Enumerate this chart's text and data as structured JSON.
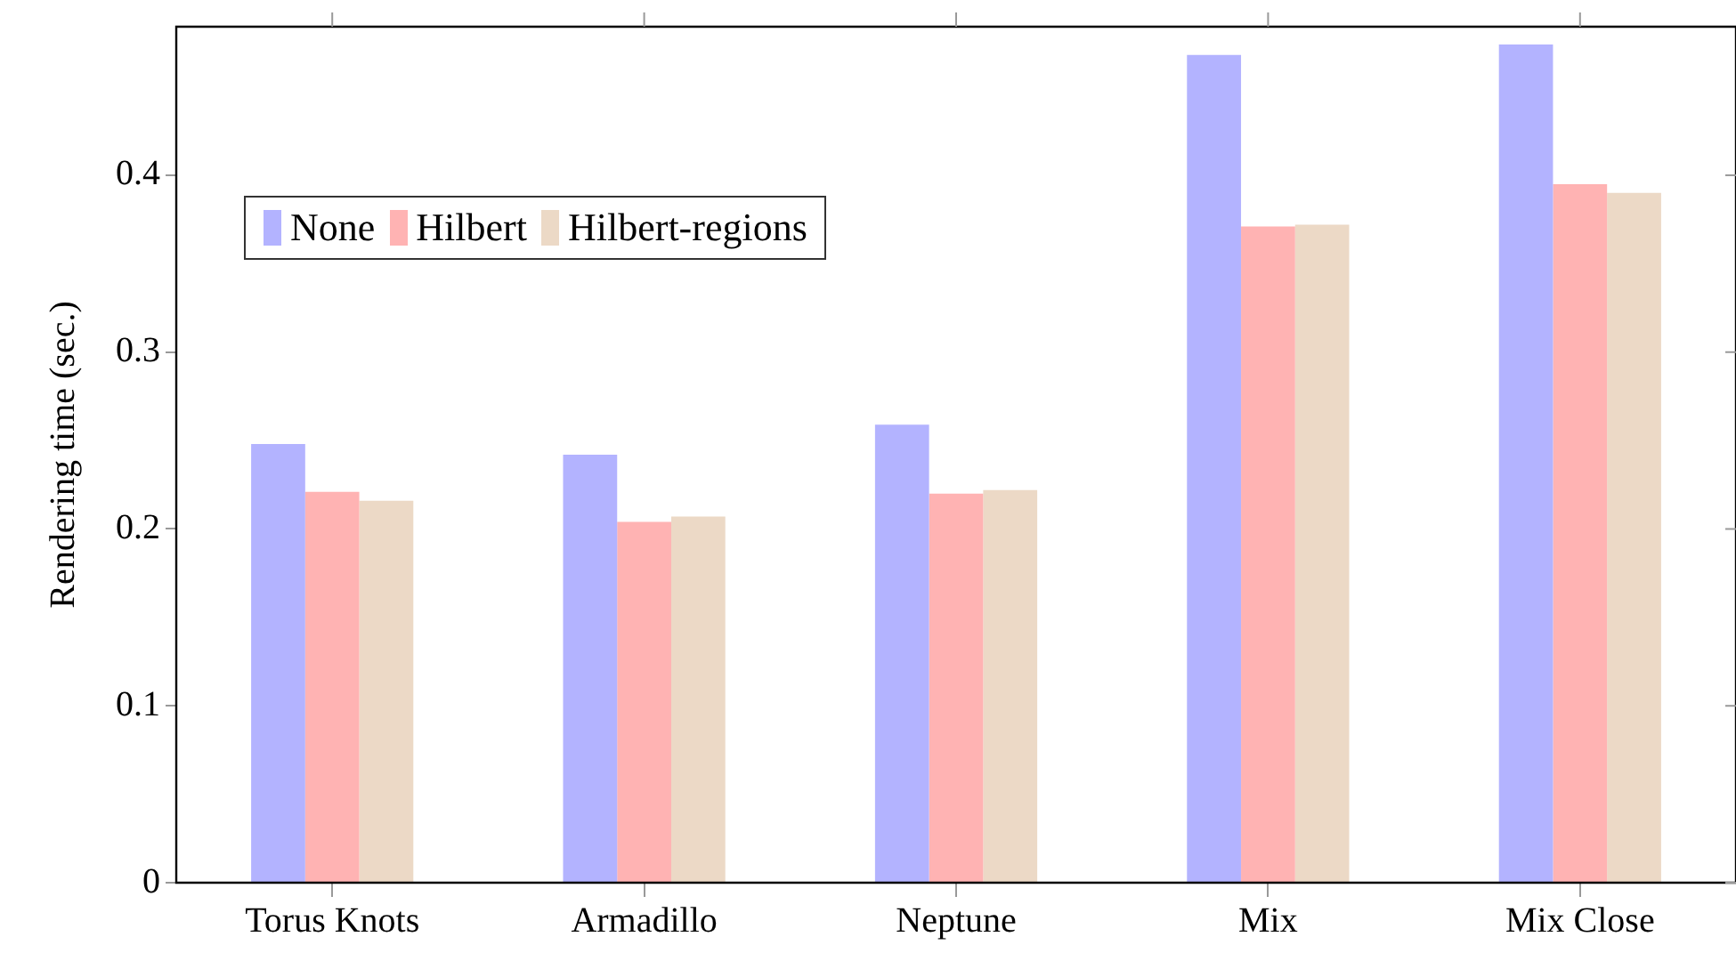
{
  "chart_data": {
    "type": "bar",
    "ylabel": "Rendering time (sec.)",
    "categories": [
      "Torus Knots",
      "Armadillo",
      "Neptune",
      "Mix",
      "Mix Close"
    ],
    "series": [
      {
        "name": "None",
        "color": "#b3b3ff",
        "values": [
          0.248,
          0.242,
          0.259,
          0.468,
          0.474
        ]
      },
      {
        "name": "Hilbert",
        "color": "#ffb3b3",
        "values": [
          0.221,
          0.204,
          0.22,
          0.371,
          0.395
        ]
      },
      {
        "name": "Hilbert-regions",
        "color": "#ecd9c6",
        "values": [
          0.216,
          0.207,
          0.222,
          0.372,
          0.39
        ]
      }
    ],
    "ylim": [
      0,
      0.484
    ],
    "yticks": [
      0,
      0.1,
      0.2,
      0.3,
      0.4
    ],
    "grid": false,
    "legend": "top left"
  }
}
